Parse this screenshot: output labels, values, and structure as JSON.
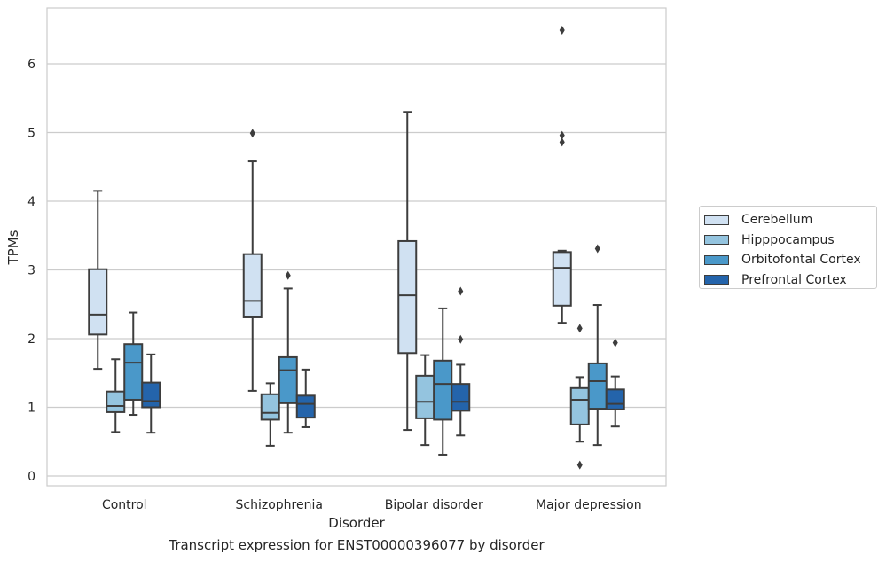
{
  "caption": "Transcript expression for ENST00000396077 by disorder",
  "chart_data": {
    "type": "box",
    "title": "",
    "xlabel": "Disorder",
    "ylabel": "TPMs",
    "ylim": [
      -0.15,
      6.8
    ],
    "yticks": [
      0,
      1,
      2,
      3,
      4,
      5,
      6
    ],
    "grid": "horizontal",
    "legend_position": "right",
    "categories": [
      "Control",
      "Schizophrenia",
      "Bipolar disorder",
      "Major depression"
    ],
    "series": [
      {
        "name": "Cerebellum",
        "color": "#d0e1f2",
        "boxes": [
          {
            "whislo": 1.56,
            "q1": 2.06,
            "med": 2.35,
            "q3": 3.01,
            "whishi": 4.15,
            "fliers": []
          },
          {
            "whislo": 1.24,
            "q1": 2.31,
            "med": 2.55,
            "q3": 3.23,
            "whishi": 4.58,
            "fliers": [
              4.99
            ]
          },
          {
            "whislo": 0.67,
            "q1": 1.79,
            "med": 2.63,
            "q3": 3.42,
            "whishi": 5.3,
            "fliers": []
          },
          {
            "whislo": 2.23,
            "q1": 2.48,
            "med": 3.03,
            "q3": 3.26,
            "whishi": 3.28,
            "fliers": [
              6.49,
              4.96,
              4.86
            ]
          }
        ]
      },
      {
        "name": "Hipppocampus",
        "color": "#94c4df",
        "boxes": [
          {
            "whislo": 0.64,
            "q1": 0.93,
            "med": 1.02,
            "q3": 1.23,
            "whishi": 1.7,
            "fliers": []
          },
          {
            "whislo": 0.44,
            "q1": 0.82,
            "med": 0.92,
            "q3": 1.19,
            "whishi": 1.35,
            "fliers": []
          },
          {
            "whislo": 0.45,
            "q1": 0.84,
            "med": 1.08,
            "q3": 1.46,
            "whishi": 1.76,
            "fliers": []
          },
          {
            "whislo": 0.5,
            "q1": 0.75,
            "med": 1.11,
            "q3": 1.28,
            "whishi": 1.44,
            "fliers": [
              2.15,
              0.16
            ]
          }
        ]
      },
      {
        "name": "Orbitofontal Cortex",
        "color": "#4a98c9",
        "boxes": [
          {
            "whislo": 0.89,
            "q1": 1.11,
            "med": 1.65,
            "q3": 1.92,
            "whishi": 2.38,
            "fliers": []
          },
          {
            "whislo": 0.63,
            "q1": 1.06,
            "med": 1.54,
            "q3": 1.73,
            "whishi": 2.73,
            "fliers": [
              2.92
            ]
          },
          {
            "whislo": 0.31,
            "q1": 0.82,
            "med": 1.34,
            "q3": 1.68,
            "whishi": 2.44,
            "fliers": []
          },
          {
            "whislo": 0.45,
            "q1": 0.98,
            "med": 1.38,
            "q3": 1.64,
            "whishi": 2.49,
            "fliers": [
              3.31
            ]
          }
        ]
      },
      {
        "name": "Prefrontal Cortex",
        "color": "#2464ab",
        "boxes": [
          {
            "whislo": 0.63,
            "q1": 1.0,
            "med": 1.09,
            "q3": 1.36,
            "whishi": 1.77,
            "fliers": []
          },
          {
            "whislo": 0.71,
            "q1": 0.85,
            "med": 1.05,
            "q3": 1.17,
            "whishi": 1.55,
            "fliers": []
          },
          {
            "whislo": 0.59,
            "q1": 0.95,
            "med": 1.08,
            "q3": 1.34,
            "whishi": 1.62,
            "fliers": [
              2.69,
              1.99
            ]
          },
          {
            "whislo": 0.72,
            "q1": 0.97,
            "med": 1.05,
            "q3": 1.26,
            "whishi": 1.45,
            "fliers": [
              1.94
            ]
          }
        ]
      }
    ]
  }
}
